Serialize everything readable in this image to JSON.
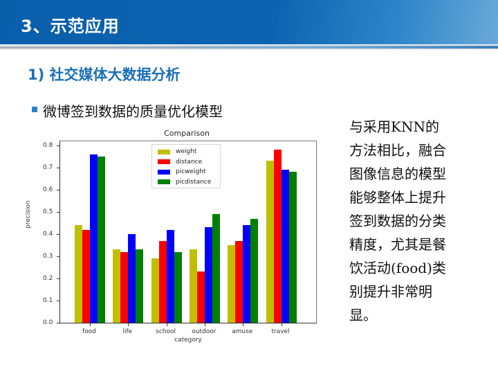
{
  "header": {
    "title": "3、示范应用"
  },
  "section": {
    "title": "1) 社交媒体大数据分析"
  },
  "bullet": {
    "text": "微博签到数据的质量优化模型"
  },
  "side_text": {
    "lines": [
      "与采用KNN的",
      "方法相比，融合",
      "图像信息的模型",
      "能够整体上提升",
      "签到数据的分类",
      "精度，尤其是餐",
      "饮活动(food)类",
      "别提升非常明",
      "显。"
    ]
  },
  "colors": {
    "header_blue": "#0a5fab",
    "section_blue": "#1a6fb6",
    "bullet_blue": "#2b82cf"
  },
  "chart_data": {
    "type": "bar",
    "title": "Comparison",
    "xlabel": "category",
    "ylabel": "precision",
    "ylim": [
      0,
      0.82
    ],
    "yticks": [
      "0.0",
      "0.1",
      "0.2",
      "0.3",
      "0.4",
      "0.5",
      "0.6",
      "0.7",
      "0.8"
    ],
    "categories": [
      "food",
      "life",
      "school",
      "outdoor",
      "amuse",
      "travel"
    ],
    "series": [
      {
        "name": "weight",
        "color": "#bfbf00",
        "values": [
          0.44,
          0.33,
          0.29,
          0.33,
          0.35,
          0.73
        ]
      },
      {
        "name": "distance",
        "color": "#ff0000",
        "values": [
          0.42,
          0.32,
          0.37,
          0.23,
          0.37,
          0.78
        ]
      },
      {
        "name": "picweight",
        "color": "#0000ff",
        "values": [
          0.76,
          0.4,
          0.42,
          0.43,
          0.44,
          0.69
        ]
      },
      {
        "name": "picdistance",
        "color": "#008000",
        "values": [
          0.75,
          0.33,
          0.32,
          0.49,
          0.47,
          0.68
        ]
      }
    ],
    "legend_position": "upper center",
    "grid": false
  }
}
